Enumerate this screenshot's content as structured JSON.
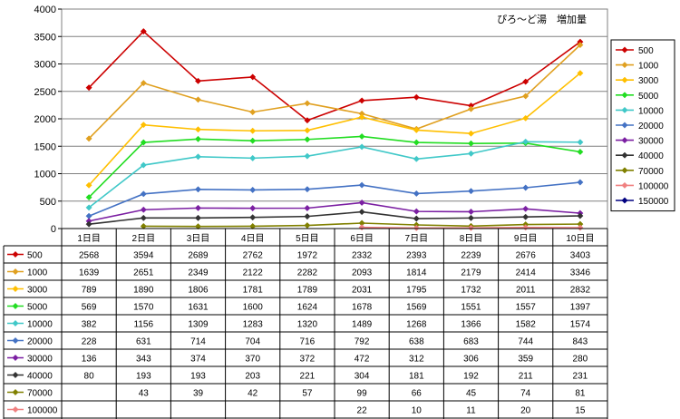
{
  "chart_data": {
    "type": "line",
    "title": "ぴろ～ど湯　増加量",
    "categories": [
      "1日目",
      "2日目",
      "3日目",
      "4日目",
      "5日目",
      "6日目",
      "7日目",
      "8日目",
      "9日目",
      "10日目"
    ],
    "ylim": [
      0,
      4000
    ],
    "yticks": [
      0,
      500,
      1000,
      1500,
      2000,
      2500,
      3000,
      3500,
      4000
    ],
    "grid": true,
    "legend": "right",
    "series": [
      {
        "name": "500",
        "color": "#cc0000",
        "values": [
          2568,
          3594,
          2689,
          2762,
          1972,
          2332,
          2393,
          2239,
          2676,
          3403
        ]
      },
      {
        "name": "1000",
        "color": "#e0a020",
        "values": [
          1639,
          2651,
          2349,
          2122,
          2282,
          2093,
          1814,
          2179,
          2414,
          3346
        ]
      },
      {
        "name": "3000",
        "color": "#ffbf00",
        "values": [
          789,
          1890,
          1806,
          1781,
          1789,
          2031,
          1795,
          1732,
          2011,
          2832
        ]
      },
      {
        "name": "5000",
        "color": "#22dd22",
        "values": [
          569,
          1570,
          1631,
          1600,
          1624,
          1678,
          1569,
          1551,
          1557,
          1397
        ]
      },
      {
        "name": "10000",
        "color": "#40c8c8",
        "values": [
          382,
          1156,
          1309,
          1283,
          1320,
          1489,
          1268,
          1366,
          1582,
          1574
        ]
      },
      {
        "name": "20000",
        "color": "#4472c4",
        "values": [
          228,
          631,
          714,
          704,
          716,
          792,
          638,
          683,
          744,
          843
        ]
      },
      {
        "name": "30000",
        "color": "#7b1fa2",
        "values": [
          136,
          343,
          374,
          370,
          372,
          472,
          312,
          306,
          359,
          280
        ]
      },
      {
        "name": "40000",
        "color": "#333333",
        "values": [
          80,
          193,
          193,
          203,
          221,
          304,
          181,
          192,
          211,
          231
        ]
      },
      {
        "name": "70000",
        "color": "#808000",
        "values": [
          null,
          43,
          39,
          42,
          57,
          99,
          66,
          45,
          74,
          81
        ]
      },
      {
        "name": "100000",
        "color": "#f08080",
        "values": [
          null,
          null,
          null,
          null,
          null,
          22,
          10,
          11,
          20,
          15
        ]
      },
      {
        "name": "150000",
        "color": "#000080",
        "values": [
          null,
          null,
          null,
          null,
          null,
          null,
          null,
          null,
          null,
          null
        ]
      }
    ]
  }
}
